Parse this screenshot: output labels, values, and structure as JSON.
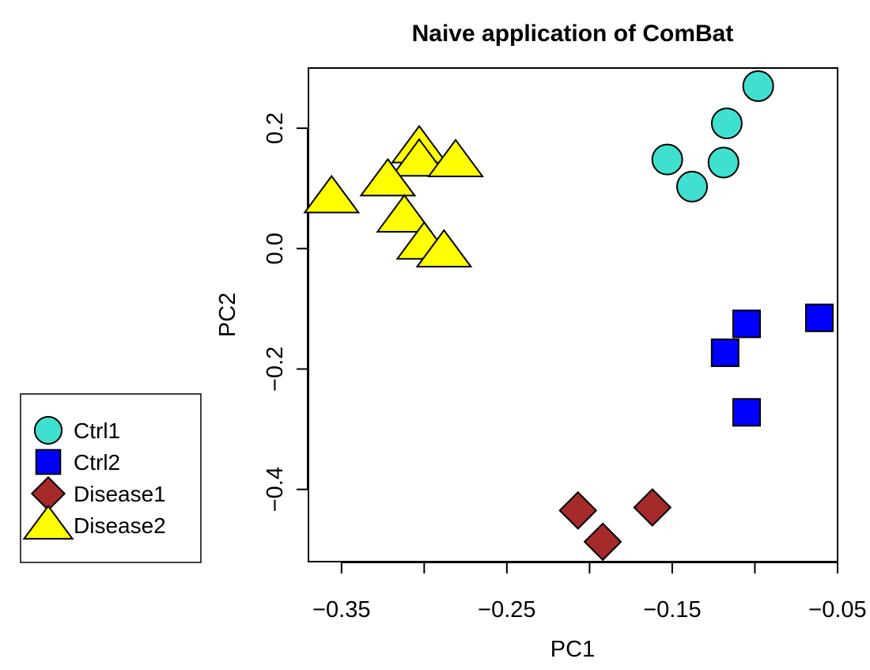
{
  "chart_data": {
    "type": "scatter",
    "title": "Naive application of ComBat",
    "xlabel": "PC1",
    "ylabel": "PC2",
    "xlim": [
      -0.37,
      -0.05
    ],
    "ylim": [
      -0.52,
      0.3
    ],
    "xticks": [
      -0.35,
      -0.25,
      -0.15,
      -0.05
    ],
    "xtick_labels": [
      "−0.35",
      "−0.25",
      "−0.15",
      "−0.05"
    ],
    "xticks_minor": [
      -0.3,
      -0.2,
      -0.1
    ],
    "yticks": [
      0.2,
      0.0,
      -0.2,
      -0.4
    ],
    "ytick_labels": [
      "0.2",
      "0.0",
      "−0.2",
      "−0.4"
    ],
    "legend_position": "left",
    "grid": false,
    "series": [
      {
        "name": "Ctrl1",
        "shape": "circle",
        "color": "#40E0D0",
        "points": [
          [
            -0.098,
            0.27
          ],
          [
            -0.117,
            0.208
          ],
          [
            -0.119,
            0.143
          ],
          [
            -0.153,
            0.148
          ],
          [
            -0.138,
            0.103
          ]
        ]
      },
      {
        "name": "Ctrl2",
        "shape": "square",
        "color": "#0000FF",
        "points": [
          [
            -0.061,
            -0.115
          ],
          [
            -0.105,
            -0.125
          ],
          [
            -0.118,
            -0.173
          ],
          [
            -0.105,
            -0.272
          ]
        ]
      },
      {
        "name": "Disease1",
        "shape": "diamond",
        "color": "#A52A2A",
        "points": [
          [
            -0.207,
            -0.435
          ],
          [
            -0.162,
            -0.43
          ],
          [
            -0.192,
            -0.487
          ]
        ]
      },
      {
        "name": "Disease2",
        "shape": "triangle",
        "color": "#FFFF00",
        "points": [
          [
            -0.303,
            0.168
          ],
          [
            -0.303,
            0.146
          ],
          [
            -0.281,
            0.145
          ],
          [
            -0.322,
            0.113
          ],
          [
            -0.356,
            0.085
          ],
          [
            -0.312,
            0.053
          ],
          [
            -0.3,
            0.008
          ],
          [
            -0.288,
            -0.005
          ]
        ]
      }
    ]
  }
}
